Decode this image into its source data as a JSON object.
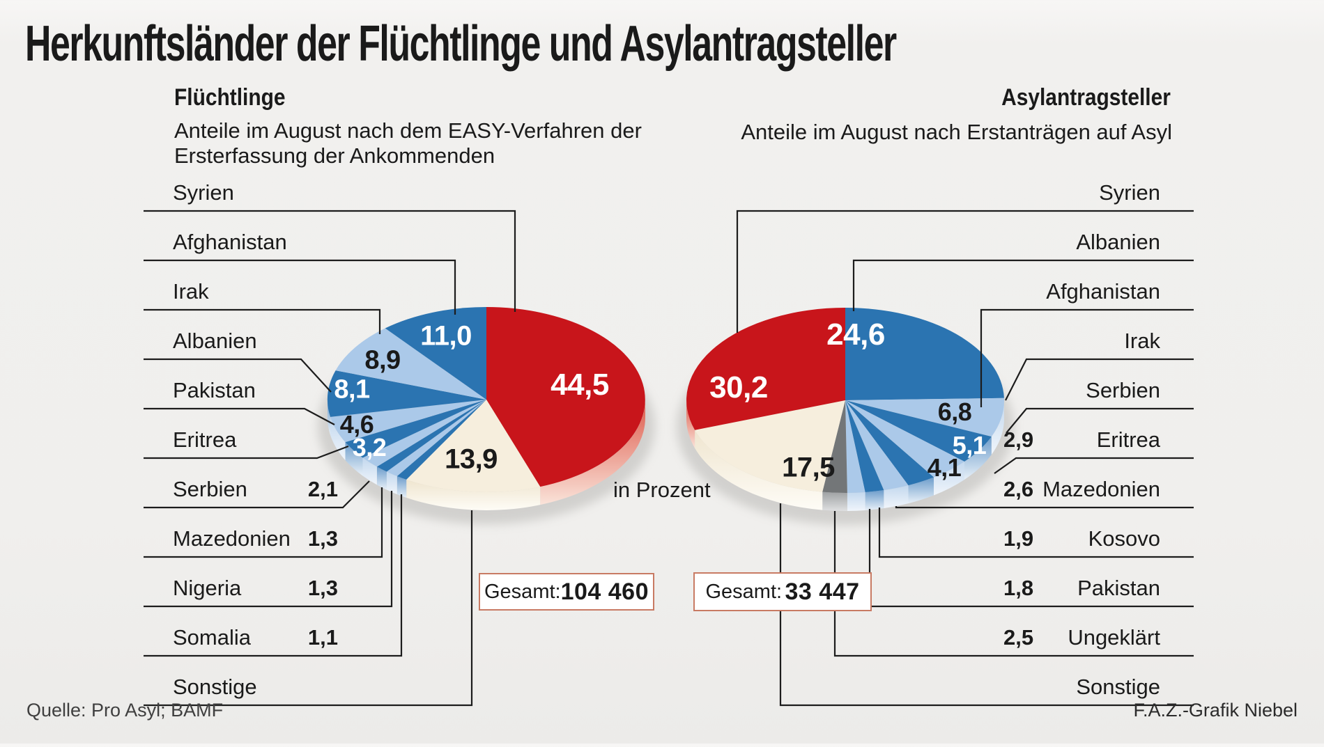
{
  "title": "Herkunftsländer der Flüchtlinge und Asylantragsteller",
  "unit_note": "in Prozent",
  "source": "Quelle: Pro Asyl; BAMF",
  "credit": "F.A.Z.-Grafik Niebel",
  "colors": {
    "red": "#c8151b",
    "blue": "#2b74b1",
    "light_blue": "#abc9e9",
    "cream": "#f6eedd",
    "gray": "#737678",
    "line": "#1c1c1c",
    "box_border": "#c87a63",
    "text": "#1a1a1a",
    "value_light": "#ffffff",
    "value_dark": "#1a1a1a",
    "rim_red_top": "#dd5a4b",
    "rim_red_bottom": "#fae3d9",
    "rim_blue_top": "#6d9dcb",
    "rim_blue_bottom": "#e8f0f8",
    "rim_light_blue_top": "#c3d8ee",
    "rim_light_blue_bottom": "#f0f5fb",
    "rim_cream_top": "#efe5cf",
    "rim_cream_bottom": "#fefcf6",
    "rim_gray_top": "#9fa2a4",
    "rim_gray_bottom": "#dfe0e1"
  },
  "chart_data": [
    {
      "type": "pie",
      "title": "Flüchtlinge",
      "subtitle_lines": [
        "Anteile im August nach dem EASY-Verfahren der",
        "Ersterfassung der Ankommenden"
      ],
      "unit": "in Prozent",
      "total_label": "Gesamt:",
      "total_display": "104 460",
      "total": 104460,
      "slices": [
        {
          "label": "Syrien",
          "value": 44.5,
          "display": "44,5",
          "color": "red"
        },
        {
          "label": "Sonstige",
          "value": 13.9,
          "display": "13,9",
          "color": "cream"
        },
        {
          "label": "Somalia",
          "value": 1.1,
          "display": "1,1",
          "color": "blue"
        },
        {
          "label": "Nigeria",
          "value": 1.3,
          "display": "1,3",
          "color": "light_blue"
        },
        {
          "label": "Mazedonien",
          "value": 1.3,
          "display": "1,3",
          "color": "blue"
        },
        {
          "label": "Serbien",
          "value": 2.1,
          "display": "2,1",
          "color": "light_blue"
        },
        {
          "label": "Eritrea",
          "value": 3.2,
          "display": "3,2",
          "color": "blue"
        },
        {
          "label": "Pakistan",
          "value": 4.6,
          "display": "4,6",
          "color": "light_blue"
        },
        {
          "label": "Albanien",
          "value": 8.1,
          "display": "8,1",
          "color": "blue"
        },
        {
          "label": "Irak",
          "value": 8.9,
          "display": "8,9",
          "color": "light_blue"
        },
        {
          "label": "Afghanistan",
          "value": 11.0,
          "display": "11,0",
          "color": "blue"
        }
      ],
      "legend_rows": [
        {
          "label": "Syrien",
          "value": ""
        },
        {
          "label": "Afghanistan",
          "value": ""
        },
        {
          "label": "Irak",
          "value": ""
        },
        {
          "label": "Albanien",
          "value": ""
        },
        {
          "label": "Pakistan",
          "value": ""
        },
        {
          "label": "Eritrea",
          "value": ""
        },
        {
          "label": "Serbien",
          "value": "2,1"
        },
        {
          "label": "Mazedonien",
          "value": "1,3"
        },
        {
          "label": "Nigeria",
          "value": "1,3"
        },
        {
          "label": "Somalia",
          "value": "1,1"
        },
        {
          "label": "Sonstige",
          "value": ""
        }
      ]
    },
    {
      "type": "pie",
      "title": "Asylantragsteller",
      "subtitle_lines": [
        "Anteile im August nach Erstanträgen auf Asyl"
      ],
      "unit": "in Prozent",
      "total_label": "Gesamt:",
      "total_display": "33 447",
      "total": 33447,
      "slices": [
        {
          "label": "Albanien",
          "value": 24.6,
          "display": "24,6",
          "color": "blue"
        },
        {
          "label": "Afghanistan",
          "value": 6.8,
          "display": "6,8",
          "color": "light_blue"
        },
        {
          "label": "Irak",
          "value": 5.1,
          "display": "5,1",
          "color": "blue"
        },
        {
          "label": "Serbien",
          "value": 4.1,
          "display": "4,1",
          "color": "light_blue"
        },
        {
          "label": "Eritrea",
          "value": 2.9,
          "display": "2,9",
          "color": "blue"
        },
        {
          "label": "Mazedonien",
          "value": 2.6,
          "display": "2,6",
          "color": "light_blue"
        },
        {
          "label": "Kosovo",
          "value": 1.9,
          "display": "1,9",
          "color": "blue"
        },
        {
          "label": "Pakistan",
          "value": 1.8,
          "display": "1,8",
          "color": "light_blue"
        },
        {
          "label": "Ungeklärt",
          "value": 2.5,
          "display": "2,5",
          "color": "gray"
        },
        {
          "label": "Sonstige",
          "value": 17.5,
          "display": "17,5",
          "color": "cream"
        },
        {
          "label": "Syrien",
          "value": 30.2,
          "display": "30,2",
          "color": "red"
        }
      ],
      "legend_rows": [
        {
          "label": "Syrien",
          "value": ""
        },
        {
          "label": "Albanien",
          "value": ""
        },
        {
          "label": "Afghanistan",
          "value": ""
        },
        {
          "label": "Irak",
          "value": ""
        },
        {
          "label": "Serbien",
          "value": ""
        },
        {
          "label": "Eritrea",
          "value": "2,9"
        },
        {
          "label": "Mazedonien",
          "value": "2,6"
        },
        {
          "label": "Kosovo",
          "value": "1,9"
        },
        {
          "label": "Pakistan",
          "value": "1,8"
        },
        {
          "label": "Ungeklärt",
          "value": "2,5"
        },
        {
          "label": "Sonstige",
          "value": ""
        }
      ]
    }
  ]
}
